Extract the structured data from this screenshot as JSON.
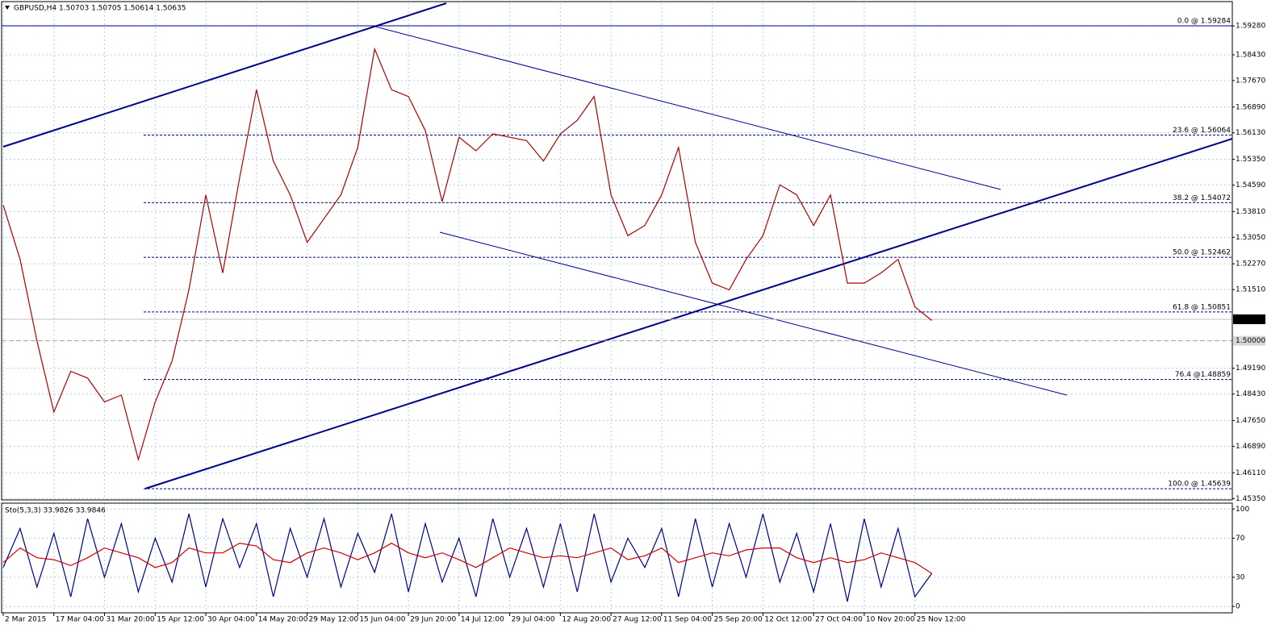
{
  "chart_data": [
    {
      "type": "line",
      "title": "GBPUSD,H4  1.50703 1.50705 1.50614 1.50635",
      "categories": [
        "2 Mar 2015",
        null,
        null,
        "17 Mar 04:00",
        null,
        null,
        "31 Mar 20:00",
        null,
        null,
        "15 Apr 12:00",
        null,
        null,
        "30 Apr 04:00",
        null,
        null,
        "14 May 20:00",
        null,
        null,
        "29 May 12:00",
        null,
        null,
        "15 Jun 04:00",
        null,
        null,
        "29 Jun 20:00",
        null,
        null,
        "14 Jul 12:00",
        null,
        null,
        "29 Jul 04:00",
        null,
        null,
        "12 Aug 20:00",
        null,
        null,
        "27 Aug 12:00",
        null,
        null,
        "11 Sep 04:00",
        null,
        null,
        "25 Sep 20:00",
        null,
        null,
        "12 Oct 12:00",
        null,
        null,
        "27 Oct 04:00",
        null,
        null,
        "10 Nov 20:00",
        null,
        null,
        "25 Nov 12:00",
        null
      ],
      "values": [
        1.54,
        1.524,
        1.5,
        1.479,
        1.491,
        1.489,
        1.482,
        1.484,
        1.465,
        1.482,
        1.494,
        1.515,
        1.543,
        1.52,
        1.548,
        1.574,
        1.553,
        1.543,
        1.529,
        1.536,
        1.543,
        1.557,
        1.586,
        1.574,
        1.572,
        1.562,
        1.541,
        1.56,
        1.556,
        1.561,
        1.56,
        1.559,
        1.553,
        1.561,
        1.565,
        1.572,
        1.543,
        1.531,
        1.534,
        1.543,
        1.557,
        1.529,
        1.517,
        1.515,
        1.524,
        1.531,
        1.546,
        1.543,
        1.534,
        1.543,
        1.517,
        1.517,
        1.52,
        1.524,
        1.51,
        1.506
      ],
      "color": "#b00000",
      "ylim": [
        1.4531,
        1.5995
      ],
      "yticks": [
        {
          "value": 1.5928,
          "label": "1.59280"
        },
        {
          "value": 1.5843,
          "label": "1.58430"
        },
        {
          "value": 1.5767,
          "label": "1.57670"
        },
        {
          "value": 1.5689,
          "label": "1.56890"
        },
        {
          "value": 1.5613,
          "label": "1.56130"
        },
        {
          "value": 1.5535,
          "label": "1.55350"
        },
        {
          "value": 1.5459,
          "label": "1.54590"
        },
        {
          "value": 1.5381,
          "label": "1.53810"
        },
        {
          "value": 1.5305,
          "label": "1.53050"
        },
        {
          "value": 1.5227,
          "label": "1.52270"
        },
        {
          "value": 1.5151,
          "label": "1.51510"
        },
        {
          "value": 1.4919,
          "label": "1.49190"
        },
        {
          "value": 1.4843,
          "label": "1.48430"
        },
        {
          "value": 1.4765,
          "label": "1.47650"
        },
        {
          "value": 1.4689,
          "label": "1.46890"
        },
        {
          "value": 1.4611,
          "label": "1.46110"
        },
        {
          "value": 1.4535,
          "label": "1.45350"
        }
      ],
      "grid": true,
      "fib_levels": [
        {
          "value": 1.59284,
          "label": "0.0 @ 1.59284"
        },
        {
          "value": 1.56064,
          "label": "23.6 @ 1.56064"
        },
        {
          "value": 1.54072,
          "label": "38.2 @ 1.54072"
        },
        {
          "value": 1.52462,
          "label": "50.0 @ 1.52462"
        },
        {
          "value": 1.50851,
          "label": "61.8 @ 1.50851"
        },
        {
          "value": 1.48859,
          "label": "76.4 @1.48859"
        },
        {
          "value": 1.45639,
          "label": "100.0 @ 1.45639"
        }
      ],
      "hlines": [
        {
          "value": 1.5,
          "label": "1.50000"
        }
      ],
      "last": {
        "value": 1.50635,
        "label": "1.50635"
      }
    },
    {
      "type": "line",
      "title": "Sto(5,3,3) 33.9826 33.9846",
      "series": [
        {
          "color": "#00008b",
          "values": [
            40,
            80,
            20,
            75,
            10,
            90,
            30,
            85,
            15,
            70,
            25,
            95,
            20,
            90,
            40,
            85,
            10,
            80,
            30,
            90,
            20,
            75,
            35,
            95,
            15,
            85,
            25,
            70,
            10,
            90,
            30,
            80,
            20,
            85,
            15,
            95,
            25,
            70,
            40,
            80,
            10,
            90,
            20,
            85,
            30,
            95,
            25,
            75,
            15,
            85,
            5,
            90,
            20,
            80,
            10,
            33.9826
          ]
        },
        {
          "color": "#d00000",
          "values": [
            45,
            60,
            50,
            48,
            42,
            50,
            60,
            55,
            50,
            40,
            45,
            60,
            55,
            55,
            65,
            62,
            48,
            45,
            55,
            60,
            55,
            48,
            55,
            65,
            55,
            50,
            55,
            48,
            40,
            50,
            60,
            55,
            50,
            52,
            50,
            55,
            60,
            48,
            52,
            60,
            45,
            50,
            55,
            52,
            58,
            60,
            60,
            50,
            45,
            50,
            45,
            48,
            55,
            50,
            45,
            33.9846
          ]
        }
      ],
      "ylim": [
        -6.5,
        106
      ],
      "yticks": [
        0,
        30,
        70,
        100
      ],
      "grid": true
    }
  ]
}
